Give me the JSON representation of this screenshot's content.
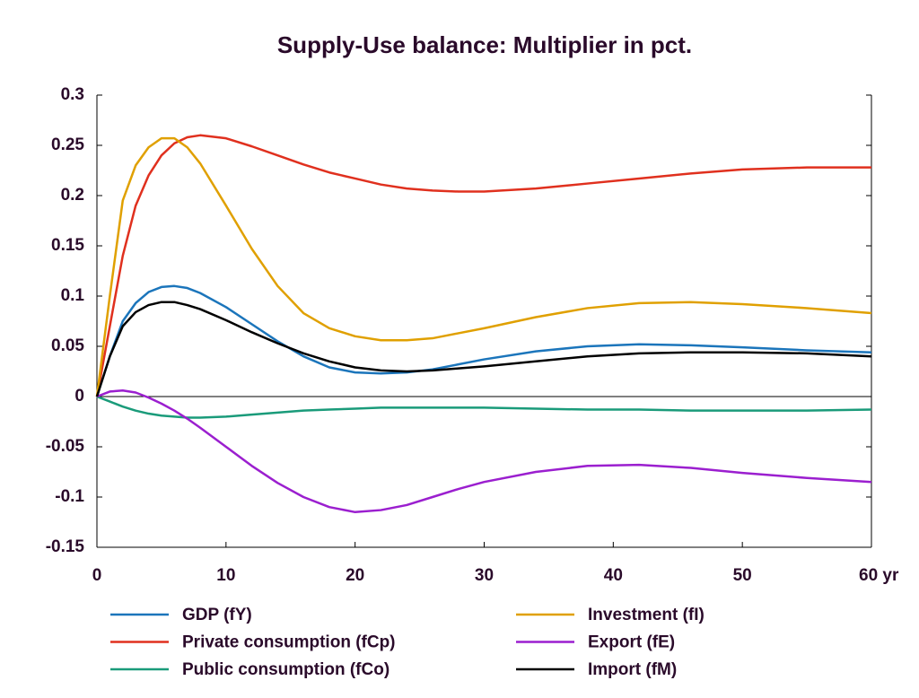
{
  "chart_data": {
    "type": "line",
    "title": "Supply-Use balance: Multiplier in pct.",
    "x": [
      0,
      1,
      2,
      3,
      4,
      5,
      6,
      7,
      8,
      10,
      12,
      14,
      16,
      18,
      20,
      22,
      24,
      26,
      28,
      30,
      34,
      38,
      42,
      46,
      50,
      55,
      60
    ],
    "series": [
      {
        "name": "GDP (fY)",
        "color": "#1b75bb",
        "values": [
          0,
          0.04,
          0.075,
          0.093,
          0.104,
          0.109,
          0.11,
          0.108,
          0.103,
          0.089,
          0.072,
          0.055,
          0.04,
          0.029,
          0.024,
          0.023,
          0.024,
          0.027,
          0.032,
          0.037,
          0.045,
          0.05,
          0.052,
          0.051,
          0.049,
          0.046,
          0.044
        ]
      },
      {
        "name": "Private consumption (fCp)",
        "color": "#e0301e",
        "values": [
          0,
          0.07,
          0.14,
          0.19,
          0.22,
          0.24,
          0.252,
          0.258,
          0.26,
          0.257,
          0.249,
          0.24,
          0.231,
          0.223,
          0.217,
          0.211,
          0.207,
          0.205,
          0.204,
          0.204,
          0.207,
          0.212,
          0.217,
          0.222,
          0.226,
          0.228,
          0.228
        ]
      },
      {
        "name": "Public consumption (fCo)",
        "color": "#1a9b7a",
        "values": [
          0,
          -0.005,
          -0.01,
          -0.014,
          -0.017,
          -0.019,
          -0.02,
          -0.021,
          -0.021,
          -0.02,
          -0.018,
          -0.016,
          -0.014,
          -0.013,
          -0.012,
          -0.011,
          -0.011,
          -0.011,
          -0.011,
          -0.011,
          -0.012,
          -0.013,
          -0.013,
          -0.014,
          -0.014,
          -0.014,
          -0.013
        ]
      },
      {
        "name": "Investment (fI)",
        "color": "#e0a000",
        "values": [
          0,
          0.1,
          0.195,
          0.23,
          0.248,
          0.257,
          0.257,
          0.248,
          0.232,
          0.19,
          0.147,
          0.11,
          0.083,
          0.068,
          0.06,
          0.056,
          0.056,
          0.058,
          0.063,
          0.068,
          0.079,
          0.088,
          0.093,
          0.094,
          0.092,
          0.088,
          0.083
        ]
      },
      {
        "name": "Export (fE)",
        "color": "#9b1fcf",
        "values": [
          0,
          0.005,
          0.006,
          0.004,
          -0.001,
          -0.007,
          -0.014,
          -0.022,
          -0.031,
          -0.05,
          -0.069,
          -0.086,
          -0.1,
          -0.11,
          -0.115,
          -0.113,
          -0.108,
          -0.1,
          -0.092,
          -0.085,
          -0.075,
          -0.069,
          -0.068,
          -0.071,
          -0.076,
          -0.081,
          -0.085
        ]
      },
      {
        "name": "Import (fM)",
        "color": "#000000",
        "values": [
          0,
          0.04,
          0.07,
          0.084,
          0.091,
          0.094,
          0.094,
          0.091,
          0.087,
          0.076,
          0.064,
          0.053,
          0.043,
          0.035,
          0.029,
          0.026,
          0.025,
          0.026,
          0.028,
          0.03,
          0.035,
          0.04,
          0.043,
          0.044,
          0.044,
          0.043,
          0.04
        ]
      }
    ],
    "xlim": [
      0,
      60
    ],
    "xticks": [
      0,
      10,
      20,
      30,
      40,
      50,
      {
        "value": 60,
        "label": "60 yr"
      }
    ],
    "ylim": [
      -0.15,
      0.3
    ],
    "yticks": [
      0.3,
      0.25,
      0.2,
      0.15,
      0.1,
      0.05,
      0,
      -0.05,
      -0.1,
      -0.15
    ],
    "grid": false
  }
}
